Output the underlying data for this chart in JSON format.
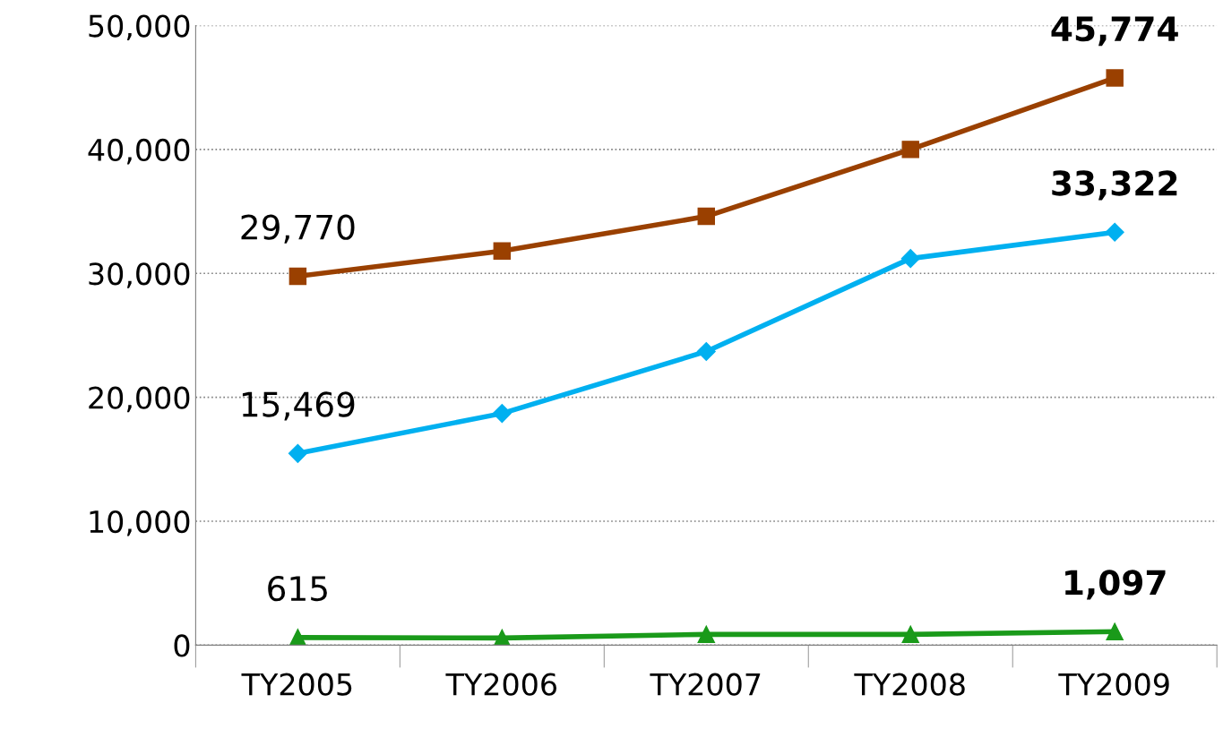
{
  "chart_data": {
    "type": "line",
    "categories": [
      "TY2005",
      "TY2006",
      "TY2007",
      "TY2008",
      "TY2009"
    ],
    "series": [
      {
        "color": "#9a4000",
        "marker": "square",
        "values": [
          29770,
          31800,
          34600,
          40000,
          45774
        ],
        "value_labels": [
          "29,770",
          null,
          null,
          null,
          "45,774"
        ]
      },
      {
        "color": "#00b0f0",
        "marker": "diamond",
        "values": [
          15469,
          18700,
          23700,
          31200,
          33322
        ],
        "value_labels": [
          "15,469",
          null,
          null,
          null,
          "33,322"
        ]
      },
      {
        "color": "#1a9a1a",
        "marker": "triangle",
        "values": [
          615,
          580,
          870,
          870,
          1097
        ],
        "value_labels": [
          "615",
          null,
          null,
          null,
          "1,097"
        ]
      }
    ],
    "ylim": [
      0,
      50000
    ],
    "yticks": [
      {
        "value": 0,
        "label": "0"
      },
      {
        "value": 10000,
        "label": "10,000"
      },
      {
        "value": 20000,
        "label": "20,000"
      },
      {
        "value": 30000,
        "label": "30,000"
      },
      {
        "value": 40000,
        "label": "40,000"
      },
      {
        "value": 50000,
        "label": "50,000"
      }
    ],
    "grid": "y",
    "line_style": "solid"
  }
}
